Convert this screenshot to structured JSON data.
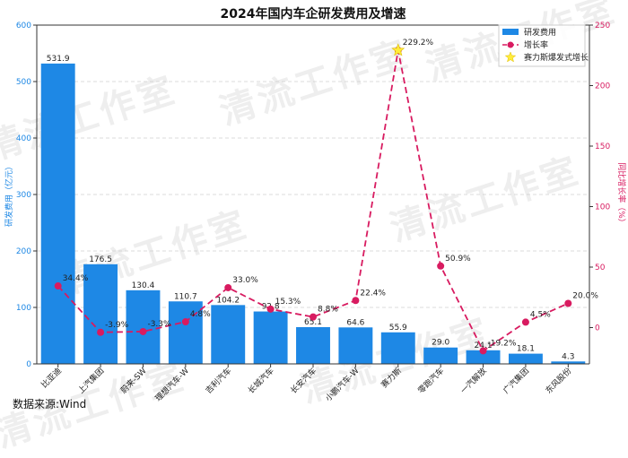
{
  "chart_data": {
    "type": "bar",
    "title": "2024年国内车企研发费用及增速",
    "categories": [
      "比亚迪",
      "上汽集团",
      "蔚来-SW",
      "理想汽车-W",
      "吉利汽车",
      "长城汽车",
      "长安汽车",
      "小鹏汽车-W",
      "赛力斯",
      "零跑汽车",
      "一汽解放",
      "广汽集团",
      "东风股份"
    ],
    "series": [
      {
        "name": "研发费用",
        "axis": "left",
        "color": "#1e88e5",
        "values": [
          531.9,
          176.5,
          130.4,
          110.7,
          104.2,
          92.8,
          65.1,
          64.6,
          55.9,
          29.0,
          24.1,
          18.1,
          4.3
        ],
        "labels": [
          "531.9",
          "176.5",
          "130.4",
          "110.7",
          "104.2",
          "92.8",
          "65.1",
          "64.6",
          "55.9",
          "29.0",
          "24.1",
          "18.1",
          "4.3"
        ]
      },
      {
        "name": "增长率",
        "axis": "right",
        "color": "#d81b60",
        "values": [
          34.4,
          -3.9,
          -3.3,
          4.8,
          33.0,
          15.3,
          8.8,
          22.4,
          229.2,
          50.9,
          -19.2,
          4.5,
          20.0
        ],
        "labels": [
          "34.4%",
          "-3.9%",
          "-3.3%",
          "4.8%",
          "33.0%",
          "15.3%",
          "8.8%",
          "22.4%",
          "229.2%",
          "50.9%",
          "-19.2%",
          "4.5%",
          "20.0%"
        ]
      }
    ],
    "highlight": {
      "name": "赛力斯爆发式增长",
      "category": "赛力斯",
      "color": "#ffeb3b"
    },
    "ylabel_left": "研发费用（亿元）",
    "ylabel_right": "同比增长率（%）",
    "ylim_left": [
      0,
      600
    ],
    "ylim_right": [
      -30,
      250
    ],
    "yticks_left": [
      0,
      100,
      200,
      300,
      400,
      500,
      600
    ],
    "yticks_right": [
      0,
      50,
      100,
      150,
      200,
      250
    ],
    "grid": true,
    "legend_position": "top-right"
  },
  "source_text": "数据来源:Wind",
  "watermark_text": "清流工作室"
}
